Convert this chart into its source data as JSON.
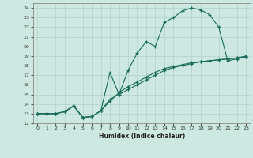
{
  "xlabel": "Humidex (Indice chaleur)",
  "xlim": [
    -0.5,
    23.5
  ],
  "ylim": [
    12.0,
    24.5
  ],
  "yticks": [
    12,
    13,
    14,
    15,
    16,
    17,
    18,
    19,
    20,
    21,
    22,
    23,
    24
  ],
  "xticks": [
    0,
    1,
    2,
    3,
    4,
    5,
    6,
    7,
    8,
    9,
    10,
    11,
    12,
    13,
    14,
    15,
    16,
    17,
    18,
    19,
    20,
    21,
    22,
    23
  ],
  "bg_color": "#cce8e0",
  "line_color": "#1a6b5a",
  "line1_x": [
    0,
    1,
    2,
    3,
    4,
    5,
    6,
    7,
    8,
    9,
    10,
    11,
    12,
    13,
    14,
    15,
    16,
    17,
    18,
    19,
    20,
    21,
    22,
    23
  ],
  "line1_y": [
    13,
    13,
    13,
    13.2,
    13.8,
    12.6,
    12.7,
    13.3,
    17.3,
    15.0,
    17.5,
    19.3,
    20.5,
    20.0,
    22.5,
    23.0,
    23.7,
    24.0,
    23.8,
    23.3,
    22.0,
    18.5,
    18.7,
    18.9
  ],
  "line2_x": [
    0,
    1,
    2,
    3,
    4,
    5,
    6,
    7,
    8,
    9,
    10,
    11,
    12,
    13,
    14,
    15,
    16,
    17,
    18,
    19,
    20,
    21,
    22,
    23
  ],
  "line2_y": [
    13,
    13,
    13,
    13.2,
    13.8,
    12.6,
    12.7,
    13.3,
    14.5,
    15.0,
    15.5,
    16.0,
    16.5,
    17.0,
    17.5,
    17.8,
    18.0,
    18.2,
    18.4,
    18.5,
    18.6,
    18.7,
    18.8,
    18.9
  ],
  "line3_x": [
    0,
    1,
    2,
    3,
    4,
    5,
    6,
    7,
    8,
    9,
    10,
    11,
    12,
    13,
    14,
    15,
    16,
    17,
    18,
    19,
    20,
    21,
    22,
    23
  ],
  "line3_y": [
    13,
    13,
    13,
    13.2,
    13.8,
    12.6,
    12.7,
    13.3,
    14.3,
    15.2,
    15.8,
    16.3,
    16.8,
    17.3,
    17.7,
    17.9,
    18.1,
    18.3,
    18.4,
    18.5,
    18.6,
    18.7,
    18.8,
    19.0
  ]
}
